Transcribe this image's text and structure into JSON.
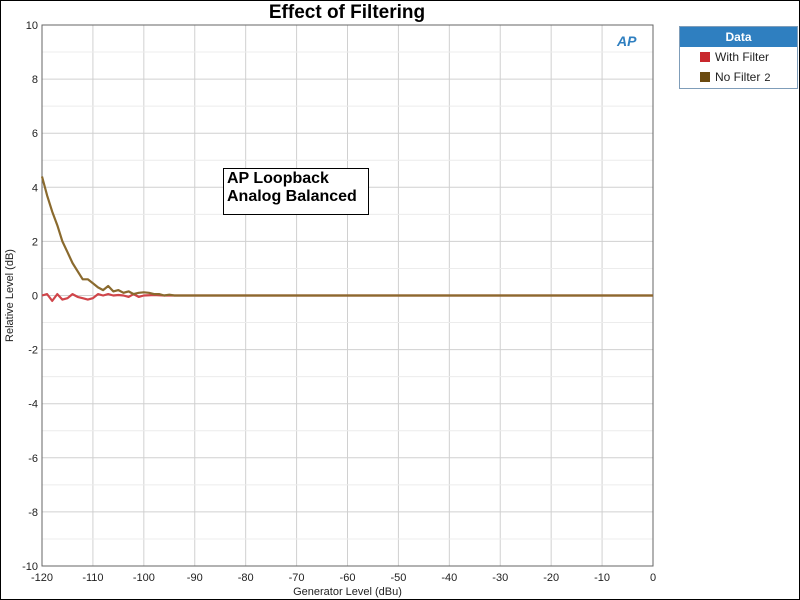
{
  "chart_data": {
    "type": "line",
    "title": "Effect of Filtering",
    "xlabel": "Generator Level (dBu)",
    "ylabel": "Relative Level (dB)",
    "xlim": [
      -120,
      0
    ],
    "ylim": [
      -10,
      10
    ],
    "xticks": [
      "-120",
      "-110",
      "-100",
      "-90",
      "-80",
      "-70",
      "-60",
      "-50",
      "-40",
      "-30",
      "-20",
      "-10",
      "0"
    ],
    "yticks": [
      "10",
      "8",
      "6",
      "4",
      "2",
      "0",
      "-2",
      "-4",
      "-6",
      "-8",
      "-10"
    ],
    "grid": true,
    "legend": {
      "title": "Data",
      "placement": "top-right-outside",
      "entries": [
        {
          "label": "With Filter",
          "suffix": "",
          "color": "#c8282d"
        },
        {
          "label": "No Filter",
          "suffix": "2",
          "color": "#6b4a10"
        }
      ]
    },
    "annotation": [
      "AP Loopback",
      "Analog Balanced"
    ],
    "logo": "AP",
    "series": [
      {
        "name": "With Filter",
        "color": "#d0454a",
        "x": [
          -120,
          -119,
          -118,
          -117,
          -116,
          -115,
          -114,
          -113,
          -112,
          -111,
          -110,
          -109,
          -108,
          -107,
          -106,
          -105,
          -104,
          -103,
          -102,
          -101,
          -100,
          -98,
          -96,
          -94,
          -92,
          -90,
          -85,
          -80,
          -70,
          -60,
          -50,
          -40,
          -30,
          -20,
          -10,
          0
        ],
        "y": [
          0.0,
          0.05,
          -0.2,
          0.05,
          -0.15,
          -0.1,
          0.05,
          -0.05,
          -0.1,
          -0.15,
          -0.1,
          0.05,
          0.0,
          0.05,
          0.0,
          0.02,
          0.0,
          -0.05,
          0.05,
          -0.05,
          0.0,
          0.02,
          0.0,
          0.0,
          0.0,
          0.0,
          0.0,
          0.0,
          0.0,
          0.0,
          0.0,
          0.0,
          0.0,
          0.0,
          0.0,
          0.0
        ]
      },
      {
        "name": "No Filter",
        "color": "#8a6a2e",
        "x": [
          -120,
          -119,
          -118,
          -117,
          -116,
          -115,
          -114,
          -113,
          -112,
          -111,
          -110,
          -109,
          -108,
          -107,
          -106,
          -105,
          -104,
          -103,
          -102,
          -101,
          -100,
          -99,
          -98,
          -97,
          -96,
          -95,
          -94,
          -92,
          -90,
          -88,
          -86,
          -84,
          -80,
          -70,
          -60,
          -50,
          -40,
          -30,
          -20,
          -10,
          0
        ],
        "y": [
          4.4,
          3.7,
          3.1,
          2.6,
          2.0,
          1.6,
          1.2,
          0.9,
          0.6,
          0.6,
          0.45,
          0.3,
          0.2,
          0.35,
          0.15,
          0.2,
          0.1,
          0.15,
          0.05,
          0.1,
          0.12,
          0.1,
          0.05,
          0.05,
          0.0,
          0.03,
          0.0,
          0.0,
          0.0,
          0.0,
          0.0,
          0.0,
          0.0,
          0.0,
          0.0,
          0.0,
          0.0,
          0.0,
          0.0,
          0.0,
          0.0
        ]
      }
    ]
  }
}
